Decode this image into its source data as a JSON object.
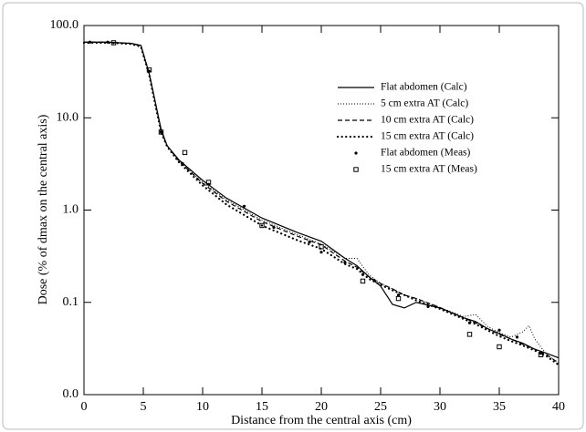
{
  "chart_data": {
    "type": "line",
    "xlabel": "Distance from the central axis (cm)",
    "ylabel": "Dose (% of dmax on the central axis)",
    "xlim": [
      0,
      40
    ],
    "xticks": [
      0,
      5,
      10,
      15,
      20,
      25,
      30,
      35,
      40
    ],
    "ylim": [
      0.01,
      100
    ],
    "yscale": "log",
    "yticks": [
      {
        "value": 0.01,
        "label": "0.0"
      },
      {
        "value": 0.1,
        "label": "0.1"
      },
      {
        "value": 1,
        "label": "1.0"
      },
      {
        "value": 10,
        "label": "10.0"
      },
      {
        "value": 100,
        "label": "100.0"
      }
    ],
    "series": [
      {
        "name": "Flat abdomen (Calc)",
        "style": "solid",
        "color": "#000000",
        "x": [
          0,
          2,
          4,
          4.8,
          5.5,
          6,
          6.5,
          7,
          8,
          10,
          12,
          15,
          18,
          20,
          22,
          23,
          24,
          25,
          26,
          27,
          28,
          30,
          32,
          33,
          34,
          35,
          36,
          37,
          38,
          39,
          40
        ],
        "values": [
          66,
          66,
          64,
          61,
          30,
          15,
          7.5,
          5,
          3.5,
          2.1,
          1.35,
          0.82,
          0.57,
          0.46,
          0.3,
          0.25,
          0.19,
          0.15,
          0.095,
          0.087,
          0.1,
          0.087,
          0.068,
          0.062,
          0.052,
          0.046,
          0.04,
          0.036,
          0.031,
          0.028,
          0.025
        ]
      },
      {
        "name": "5 cm extra AT (Calc)",
        "style": "dotted",
        "color": "#000000",
        "x": [
          0,
          2,
          4,
          4.8,
          5.5,
          6,
          6.5,
          7,
          8,
          10,
          12,
          15,
          18,
          20,
          22,
          23,
          24,
          25,
          26,
          27,
          28,
          30,
          32,
          33,
          34,
          35,
          36,
          37,
          37.5,
          38,
          39,
          40
        ],
        "values": [
          66,
          66,
          64,
          60,
          30,
          15,
          7.2,
          5,
          3.4,
          2.0,
          1.3,
          0.78,
          0.54,
          0.43,
          0.3,
          0.3,
          0.2,
          0.16,
          0.14,
          0.12,
          0.11,
          0.088,
          0.07,
          0.074,
          0.055,
          0.047,
          0.042,
          0.048,
          0.056,
          0.04,
          0.027,
          0.022
        ]
      },
      {
        "name": "10 cm extra AT (Calc)",
        "style": "dashed",
        "color": "#000000",
        "x": [
          0,
          2,
          4,
          4.8,
          5.5,
          6,
          6.5,
          7,
          8,
          10,
          12,
          15,
          18,
          20,
          22,
          23,
          24,
          25,
          26,
          27,
          28,
          30,
          32,
          33,
          34,
          35,
          36,
          37,
          38,
          39,
          40
        ],
        "values": [
          66,
          66,
          64,
          60,
          30,
          15,
          7.2,
          5,
          3.4,
          1.95,
          1.25,
          0.75,
          0.52,
          0.42,
          0.28,
          0.24,
          0.19,
          0.16,
          0.14,
          0.12,
          0.11,
          0.088,
          0.068,
          0.06,
          0.052,
          0.045,
          0.04,
          0.035,
          0.031,
          0.027,
          0.022
        ]
      },
      {
        "name": "15 cm extra AT (Calc)",
        "style": "bigdot",
        "color": "#000000",
        "x": [
          0,
          2,
          4,
          4.8,
          5.5,
          6,
          6.5,
          7,
          8,
          10,
          12,
          15,
          18,
          20,
          22,
          23,
          24,
          25,
          26,
          27,
          28,
          30,
          32,
          33,
          34,
          35,
          36,
          37,
          38,
          39,
          40
        ],
        "values": [
          65,
          65,
          63,
          59,
          29,
          14,
          7,
          4.9,
          3.3,
          1.85,
          1.15,
          0.68,
          0.47,
          0.38,
          0.26,
          0.23,
          0.18,
          0.155,
          0.135,
          0.12,
          0.105,
          0.085,
          0.066,
          0.058,
          0.05,
          0.043,
          0.038,
          0.034,
          0.03,
          0.026,
          0.021
        ]
      },
      {
        "name": "Flat abdomen (Meas)",
        "style": "dot",
        "color": "#000000",
        "x": [
          0.5,
          2,
          5.5,
          6.5,
          8.3,
          10.5,
          13.5,
          16,
          19,
          20,
          22,
          23.5,
          26.5,
          29,
          32.5,
          35,
          36.5,
          38.5
        ],
        "values": [
          66,
          66,
          32,
          7,
          3.2,
          1.9,
          1.1,
          0.65,
          0.45,
          0.35,
          0.27,
          0.2,
          0.12,
          0.09,
          0.06,
          0.05,
          0.042,
          0.028
        ]
      },
      {
        "name": "15 cm extra AT (Meas)",
        "style": "square",
        "color": "#000000",
        "x": [
          2.5,
          5.5,
          6.5,
          8.5,
          10.5,
          15,
          20,
          23.5,
          26.5,
          32.5,
          35,
          38.5
        ],
        "values": [
          65,
          33,
          7,
          4.2,
          2,
          0.68,
          0.4,
          0.17,
          0.11,
          0.045,
          0.033,
          0.027
        ]
      }
    ]
  }
}
